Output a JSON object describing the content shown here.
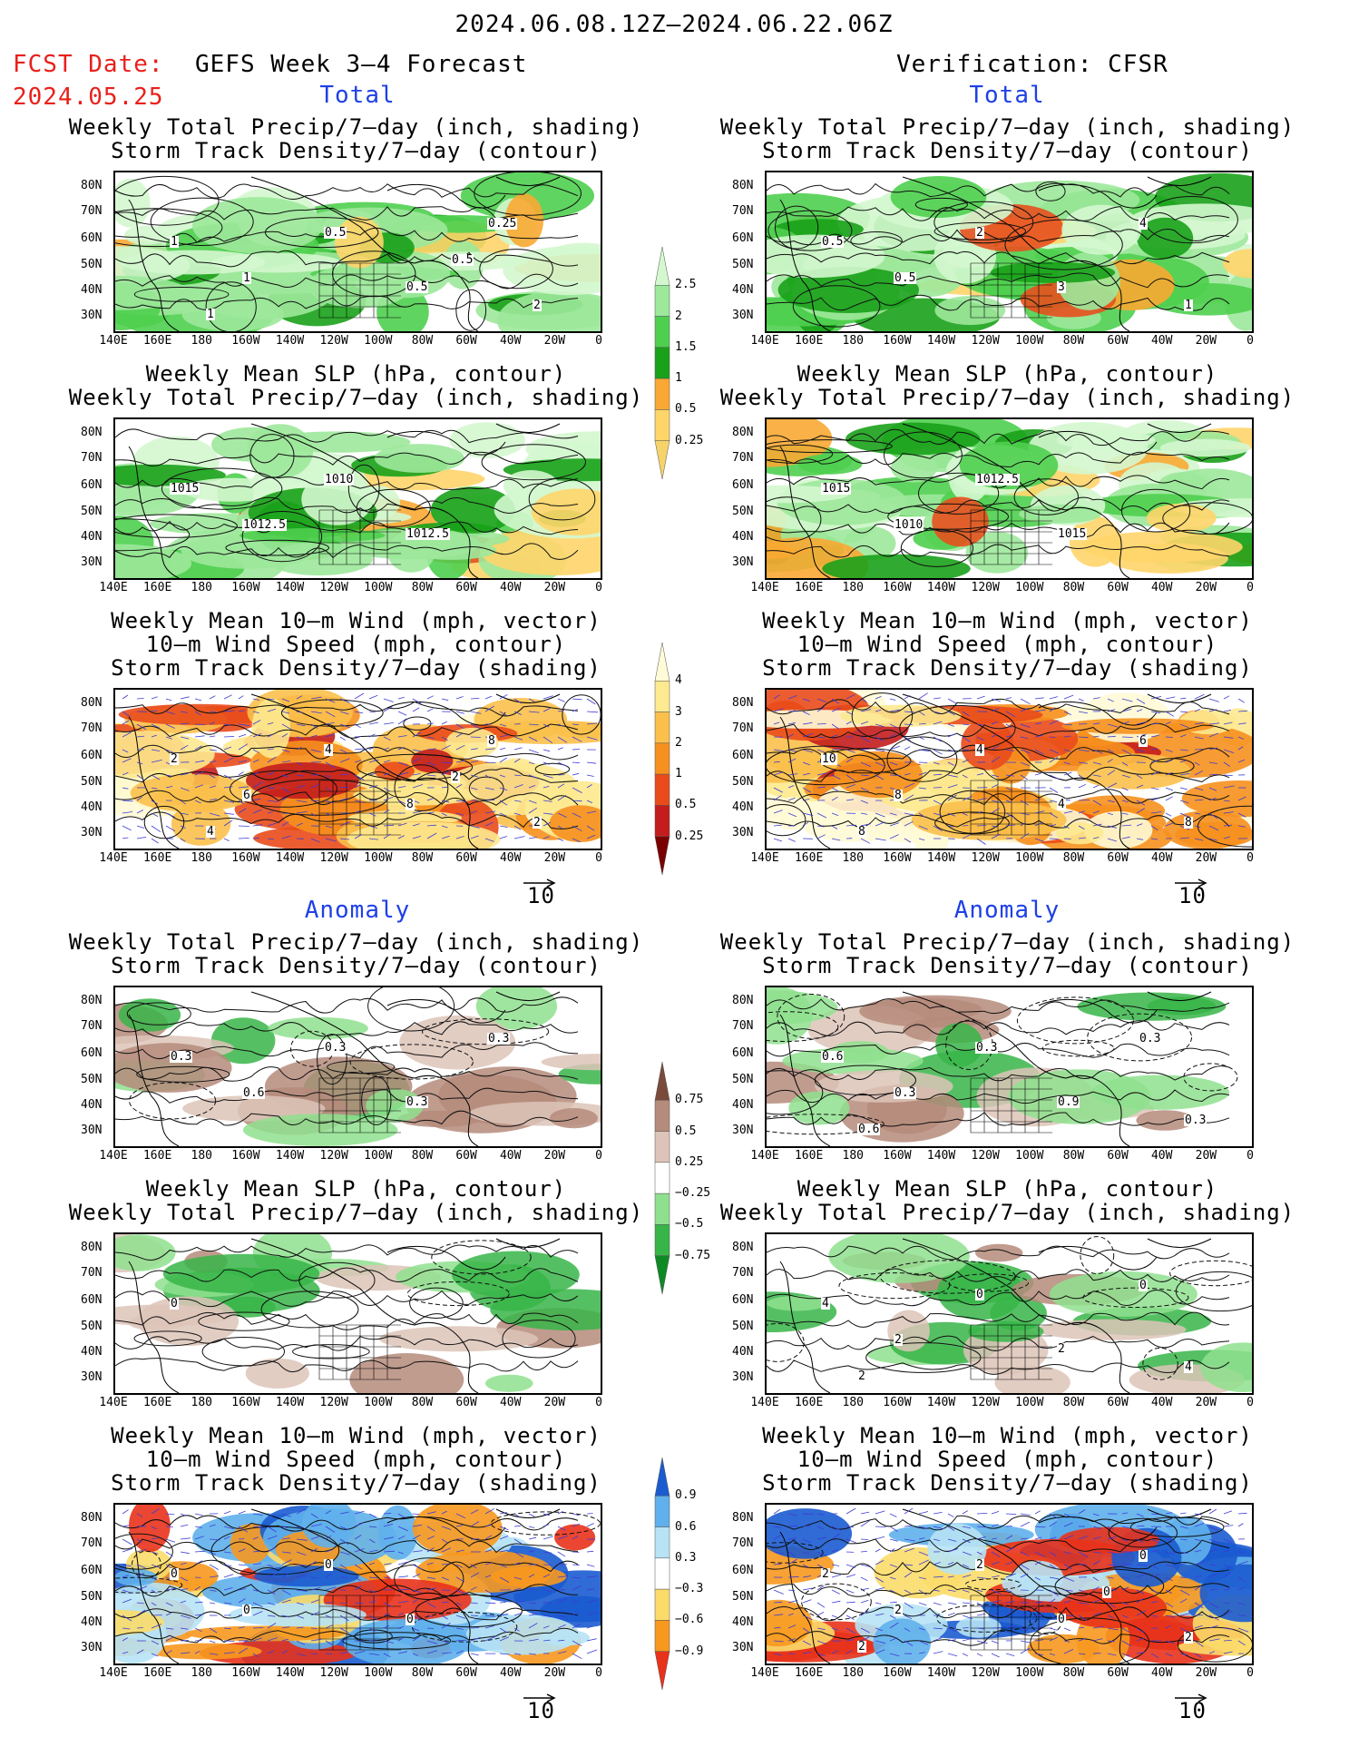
{
  "header": {
    "date_range": "2024.06.08.12Z–2024.06.22.06Z",
    "fcst_label": "FCST Date:",
    "fcst_date": "2024.05.25",
    "left_title": "GEFS Week 3–4 Forecast",
    "right_title": "Verification: CFSR"
  },
  "sections": {
    "total": "Total",
    "anomaly": "Anomaly"
  },
  "axes": {
    "lat": [
      "80N",
      "70N",
      "60N",
      "50N",
      "40N",
      "30N"
    ],
    "lon": [
      "140E",
      "160E",
      "180",
      "160W",
      "140W",
      "120W",
      "100W",
      "80W",
      "60W",
      "40W",
      "20W",
      "0"
    ]
  },
  "titles": {
    "p1": [
      "Weekly Total Precip/7–day (inch, shading)",
      "Storm Track Density/7–day (contour)"
    ],
    "p2": [
      "Weekly Mean SLP (hPa, contour)",
      "Weekly Total Precip/7–day (inch, shading)"
    ],
    "p3": [
      "Weekly Mean 10–m Wind (mph, vector)",
      "10–m Wind Speed (mph, contour)",
      "Storm Track Density/7–day (shading)"
    ]
  },
  "vector_ref": "10",
  "colorbars": {
    "precip_total": {
      "labels": [
        "2.5",
        "2",
        "1.5",
        "1",
        "0.5",
        "0.25"
      ],
      "colors": [
        "#f6d36b",
        "#ffd56a",
        "#f9a833",
        "#1aa11a",
        "#4fcf4f",
        "#9de89b",
        "#d4f7cf"
      ]
    },
    "storm_total": {
      "labels": [
        "4",
        "3",
        "2",
        "1",
        "0.5",
        "0.25"
      ],
      "colors": [
        "#7a0000",
        "#c41d1d",
        "#e94b1b",
        "#f6901e",
        "#fbc04b",
        "#fde98f",
        "#fffbd6"
      ]
    },
    "precip_anom": {
      "labels": [
        "0.75",
        "0.5",
        "0.25",
        "−0.25",
        "−0.5",
        "−0.75"
      ],
      "colors": [
        "#0d8a24",
        "#37b548",
        "#8fe08e",
        "#ffffff",
        "#ddc4b8",
        "#b58b7b",
        "#7a4a3a"
      ]
    },
    "storm_anom": {
      "labels": [
        "0.9",
        "0.6",
        "0.3",
        "−0.3",
        "−0.6",
        "−0.9"
      ],
      "colors": [
        "#e8321b",
        "#f7981f",
        "#fbdb6a",
        "#ffffff",
        "#b7e3f5",
        "#5fb0ec",
        "#1b5bd0"
      ]
    }
  },
  "contour_labels": {
    "lt1": [
      "1",
      "1",
      "0.5",
      "0.5",
      "0.25",
      "2",
      "1",
      "0.5"
    ],
    "rt1": [
      "0.5",
      "0.5",
      "2",
      "3",
      "4",
      "1"
    ],
    "lt2": [
      "1015",
      "1012.5",
      "1010",
      "1012.5"
    ],
    "rt2": [
      "1015",
      "1010",
      "1012.5",
      "1015"
    ],
    "lt3": [
      "2",
      "6",
      "4",
      "8",
      "8",
      "2",
      "4",
      "2"
    ],
    "rt3": [
      "10",
      "8",
      "4",
      "4",
      "6",
      "8",
      "8"
    ],
    "la1": [
      "0.3",
      "0.6",
      "0.3",
      "0.3",
      "0.3"
    ],
    "ra1": [
      "0.6",
      "0.3",
      "0.3",
      "0.9",
      "0.3",
      "0.3",
      "0.6"
    ],
    "la2": [
      "0"
    ],
    "ra2": [
      "4",
      "2",
      "0",
      "2",
      "0",
      "4",
      "2"
    ],
    "la3": [
      "0",
      "0",
      "0",
      "0"
    ],
    "ra3": [
      "2",
      "2",
      "2",
      "0",
      "0",
      "2",
      "2",
      "0"
    ]
  }
}
